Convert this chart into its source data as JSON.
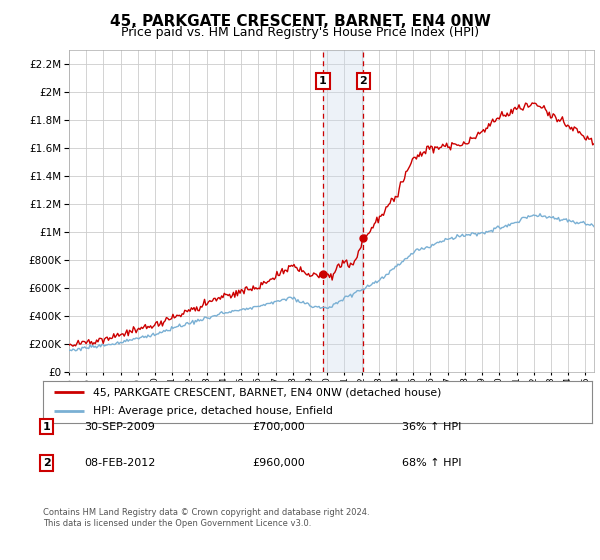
{
  "title": "45, PARKGATE CRESCENT, BARNET, EN4 0NW",
  "subtitle": "Price paid vs. HM Land Registry's House Price Index (HPI)",
  "ylabel_values": [
    0,
    200000,
    400000,
    600000,
    800000,
    1000000,
    1200000,
    1400000,
    1600000,
    1800000,
    2000000,
    2200000
  ],
  "ylabel_labels": [
    "£0",
    "£200K",
    "£400K",
    "£600K",
    "£800K",
    "£1M",
    "£1.2M",
    "£1.4M",
    "£1.6M",
    "£1.8M",
    "£2M",
    "£2.2M"
  ],
  "ylim": [
    0,
    2300000
  ],
  "xlim_start": 1995,
  "xlim_end": 2025.5,
  "red_line_color": "#cc0000",
  "blue_line_color": "#7ab0d4",
  "transaction1_x": 2009.75,
  "transaction1_y": 700000,
  "transaction2_x": 2012.1,
  "transaction2_y": 960000,
  "transaction1_date": "30-SEP-2009",
  "transaction1_price": "£700,000",
  "transaction1_hpi": "36% ↑ HPI",
  "transaction2_date": "08-FEB-2012",
  "transaction2_price": "£960,000",
  "transaction2_hpi": "68% ↑ HPI",
  "legend_line1": "45, PARKGATE CRESCENT, BARNET, EN4 0NW (detached house)",
  "legend_line2": "HPI: Average price, detached house, Enfield",
  "footer": "Contains HM Land Registry data © Crown copyright and database right 2024.\nThis data is licensed under the Open Government Licence v3.0.",
  "background_color": "#ffffff",
  "grid_color": "#cccccc",
  "shade_color": "#cddcec",
  "shade_alpha": 0.35,
  "shade_x1": 2009.75,
  "shade_x2": 2012.1,
  "box_color": "#cc0000",
  "title_fontsize": 11,
  "subtitle_fontsize": 9
}
